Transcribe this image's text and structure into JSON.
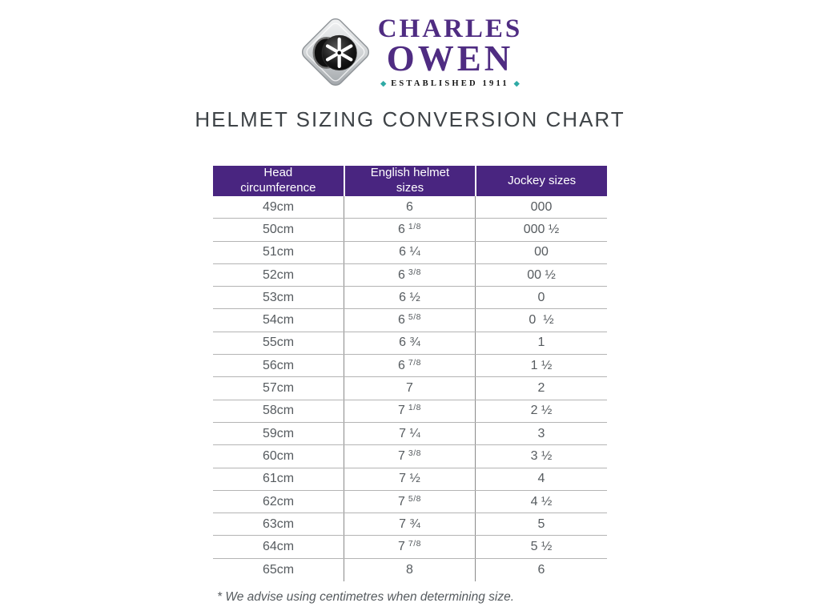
{
  "logo": {
    "brand_line1": "CHARLES",
    "brand_line2": "OWEN",
    "established": "ESTABLISHED 1911",
    "diamond_left": "◆",
    "diamond_right": "◆",
    "icon": "helmet-top-view-diamond-badge",
    "colors": {
      "brand_purple": "#4F2C82",
      "teal": "#2FAAA5"
    }
  },
  "chart_data": {
    "type": "table",
    "title": "HELMET SIZING CONVERSION CHART",
    "columns": [
      "Head circumference",
      "English helmet sizes",
      "Jockey sizes"
    ],
    "header_bg": "#492580",
    "rows": [
      {
        "head": "49cm",
        "helmet_whole": "6",
        "helmet_frac": "",
        "frac_type": "none",
        "jockey": "000"
      },
      {
        "head": "50cm",
        "helmet_whole": "6",
        "helmet_frac": "1/8",
        "frac_type": "sup",
        "jockey": "000 ½"
      },
      {
        "head": "51cm",
        "helmet_whole": "6",
        "helmet_frac": "¼",
        "frac_type": "inline",
        "jockey": "00"
      },
      {
        "head": "52cm",
        "helmet_whole": "6",
        "helmet_frac": "3/8",
        "frac_type": "sup",
        "jockey": "00 ½"
      },
      {
        "head": "53cm",
        "helmet_whole": "6",
        "helmet_frac": "½",
        "frac_type": "inline",
        "jockey": "0"
      },
      {
        "head": "54cm",
        "helmet_whole": "6",
        "helmet_frac": "5/8",
        "frac_type": "sup",
        "jockey": "0  ½"
      },
      {
        "head": "55cm",
        "helmet_whole": "6",
        "helmet_frac": "¾",
        "frac_type": "inline",
        "jockey": "1"
      },
      {
        "head": "56cm",
        "helmet_whole": "6",
        "helmet_frac": "7/8",
        "frac_type": "sup",
        "jockey": "1 ½"
      },
      {
        "head": "57cm",
        "helmet_whole": "7",
        "helmet_frac": "",
        "frac_type": "none",
        "jockey": "2"
      },
      {
        "head": "58cm",
        "helmet_whole": "7",
        "helmet_frac": "1/8",
        "frac_type": "sup",
        "jockey": "2 ½"
      },
      {
        "head": "59cm",
        "helmet_whole": "7",
        "helmet_frac": "¼",
        "frac_type": "inline",
        "jockey": "3"
      },
      {
        "head": "60cm",
        "helmet_whole": "7",
        "helmet_frac": "3/8",
        "frac_type": "sup",
        "jockey": "3 ½"
      },
      {
        "head": "61cm",
        "helmet_whole": "7",
        "helmet_frac": "½",
        "frac_type": "inline",
        "jockey": "4"
      },
      {
        "head": "62cm",
        "helmet_whole": "7",
        "helmet_frac": "5/8",
        "frac_type": "sup",
        "jockey": "4 ½"
      },
      {
        "head": "63cm",
        "helmet_whole": "7",
        "helmet_frac": "¾",
        "frac_type": "inline",
        "jockey": "5"
      },
      {
        "head": "64cm",
        "helmet_whole": "7",
        "helmet_frac": "7/8",
        "frac_type": "sup",
        "jockey": "5 ½"
      },
      {
        "head": "65cm",
        "helmet_whole": "8",
        "helmet_frac": "",
        "frac_type": "none",
        "jockey": "6"
      }
    ],
    "footnote": "* We advise using centimetres when determining size."
  }
}
